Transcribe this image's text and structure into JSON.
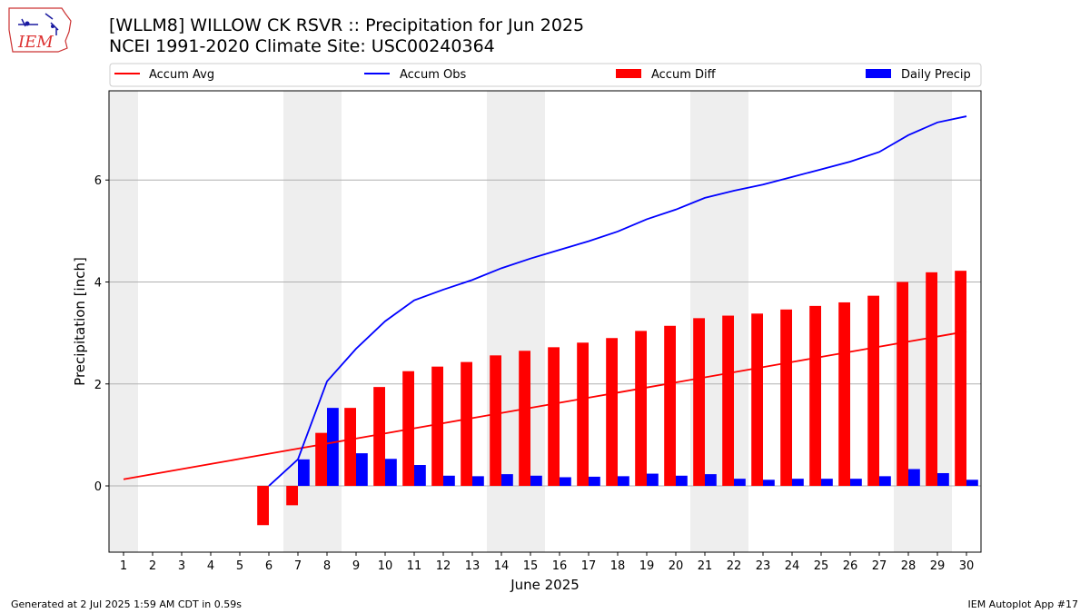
{
  "header": {
    "title_line1": "[WLLM8] WILLOW CK RSVR :: Precipitation for Jun 2025",
    "title_line2": "NCEI 1991-2020 Climate Site: USC00240364"
  },
  "logo": {
    "text": "IEM"
  },
  "footer": {
    "generated": "Generated at 2 Jul 2025 1:59 AM CDT in 0.59s",
    "app": "IEM Autoplot App #17"
  },
  "colors": {
    "avg": "#ff0000",
    "obs": "#0000ff",
    "diff": "#ff0000",
    "daily": "#0000ff",
    "weekend": "#eeeeee",
    "grid": "#b0b0b0"
  },
  "chart_data": {
    "type": "bar",
    "xlabel": "June 2025",
    "ylabel": "Precipitation [inch]",
    "xlim": [
      0.5,
      30.5
    ],
    "ylim": [
      -1.3,
      7.75
    ],
    "yticks": [
      0,
      2,
      4,
      6
    ],
    "grid": "horizontal",
    "legend_position": "top",
    "days": [
      1,
      2,
      3,
      4,
      5,
      6,
      7,
      8,
      9,
      10,
      11,
      12,
      13,
      14,
      15,
      16,
      17,
      18,
      19,
      20,
      21,
      22,
      23,
      24,
      25,
      26,
      27,
      28,
      29,
      30
    ],
    "weekend_bands": [
      [
        0.5,
        1.5
      ],
      [
        6.5,
        8.5
      ],
      [
        13.5,
        15.5
      ],
      [
        20.5,
        22.5
      ],
      [
        27.5,
        29.5
      ]
    ],
    "legend": [
      "Accum Avg",
      "Accum Obs",
      "Accum Diff",
      "Daily Precip"
    ],
    "series": [
      {
        "name": "Accum Avg",
        "kind": "line",
        "values": [
          0.13,
          0.23,
          0.33,
          0.43,
          0.53,
          0.63,
          0.73,
          0.83,
          0.93,
          1.03,
          1.13,
          1.23,
          1.33,
          1.43,
          1.53,
          1.63,
          1.73,
          1.83,
          1.93,
          2.03,
          2.13,
          2.23,
          2.33,
          2.43,
          2.53,
          2.63,
          2.73,
          2.83,
          2.93,
          3.03
        ]
      },
      {
        "name": "Accum Obs",
        "kind": "line",
        "start_day": 6,
        "values": [
          null,
          null,
          null,
          null,
          null,
          0.0,
          0.52,
          2.05,
          2.69,
          3.23,
          3.64,
          3.85,
          4.04,
          4.27,
          4.46,
          4.63,
          4.8,
          4.99,
          5.23,
          5.42,
          5.65,
          5.79,
          5.91,
          6.06,
          6.21,
          6.36,
          6.55,
          6.88,
          7.13,
          7.25
        ]
      },
      {
        "name": "Accum Diff",
        "kind": "bar",
        "values": [
          null,
          null,
          null,
          null,
          null,
          -0.77,
          -0.38,
          1.04,
          1.53,
          1.94,
          2.25,
          2.34,
          2.43,
          2.56,
          2.65,
          2.72,
          2.81,
          2.9,
          3.04,
          3.14,
          3.29,
          3.34,
          3.38,
          3.46,
          3.53,
          3.6,
          3.73,
          4.0,
          4.19,
          4.22
        ]
      },
      {
        "name": "Daily Precip",
        "kind": "bar",
        "values": [
          null,
          null,
          null,
          null,
          null,
          0.0,
          0.52,
          1.53,
          0.64,
          0.53,
          0.41,
          0.2,
          0.19,
          0.23,
          0.2,
          0.17,
          0.18,
          0.19,
          0.24,
          0.2,
          0.23,
          0.14,
          0.12,
          0.14,
          0.14,
          0.14,
          0.19,
          0.33,
          0.25,
          0.12
        ]
      }
    ]
  }
}
